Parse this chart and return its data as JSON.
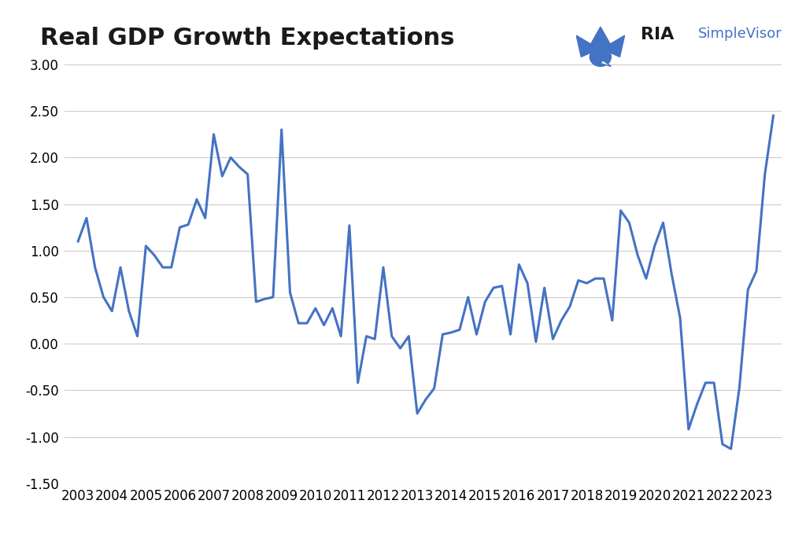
{
  "title": "Real GDP Growth Expectations",
  "title_fontsize": 22,
  "line_color": "#4472C4",
  "line_width": 2.2,
  "background_color": "#ffffff",
  "grid_color": "#cccccc",
  "ylim": [
    -1.5,
    3.0
  ],
  "yticks": [
    -1.5,
    -1.0,
    -0.5,
    0.0,
    0.5,
    1.0,
    1.5,
    2.0,
    2.5,
    3.0
  ],
  "xtick_labels": [
    "2003",
    "2004",
    "2005",
    "2006",
    "2007",
    "2008",
    "2009",
    "2010",
    "2011",
    "2012",
    "2013",
    "2014",
    "2015",
    "2016",
    "2017",
    "2018",
    "2019",
    "2020",
    "2021",
    "2022",
    "2023"
  ],
  "x_values": [
    2003.0,
    2003.25,
    2003.5,
    2003.75,
    2004.0,
    2004.25,
    2004.5,
    2004.75,
    2005.0,
    2005.25,
    2005.5,
    2005.75,
    2006.0,
    2006.25,
    2006.5,
    2006.75,
    2007.0,
    2007.25,
    2007.5,
    2007.75,
    2008.0,
    2008.25,
    2008.5,
    2008.75,
    2009.0,
    2009.25,
    2009.5,
    2009.75,
    2010.0,
    2010.25,
    2010.5,
    2010.75,
    2011.0,
    2011.25,
    2011.5,
    2011.75,
    2012.0,
    2012.25,
    2012.5,
    2012.75,
    2013.0,
    2013.25,
    2013.5,
    2013.75,
    2014.0,
    2014.25,
    2014.5,
    2014.75,
    2015.0,
    2015.25,
    2015.5,
    2015.75,
    2016.0,
    2016.25,
    2016.5,
    2016.75,
    2017.0,
    2017.25,
    2017.5,
    2017.75,
    2018.0,
    2018.25,
    2018.5,
    2018.75,
    2019.0,
    2019.25,
    2019.5,
    2019.75,
    2020.0,
    2020.25,
    2020.5,
    2020.75,
    2021.0,
    2021.25,
    2021.5,
    2021.75,
    2022.0,
    2022.25,
    2022.5,
    2022.75,
    2023.0,
    2023.25,
    2023.5
  ],
  "y_values": [
    1.1,
    1.35,
    0.82,
    0.5,
    0.35,
    0.82,
    0.35,
    0.08,
    1.05,
    0.95,
    0.82,
    0.82,
    1.25,
    1.28,
    1.55,
    1.35,
    2.25,
    1.8,
    2.0,
    1.9,
    1.82,
    0.45,
    0.48,
    0.5,
    2.3,
    0.55,
    0.22,
    0.22,
    0.38,
    0.2,
    0.38,
    0.08,
    1.27,
    -0.42,
    0.08,
    0.05,
    0.82,
    0.08,
    -0.05,
    0.08,
    -0.75,
    -0.6,
    -0.48,
    0.1,
    0.12,
    0.15,
    0.5,
    0.1,
    0.45,
    0.6,
    0.62,
    0.1,
    0.85,
    0.65,
    0.02,
    0.6,
    0.05,
    0.25,
    0.4,
    0.68,
    0.65,
    0.7,
    0.7,
    0.25,
    1.43,
    1.3,
    0.95,
    0.7,
    1.05,
    1.3,
    0.75,
    0.28,
    -0.92,
    -0.65,
    -0.42,
    -0.42,
    -1.08,
    -1.13,
    -0.47,
    0.58,
    0.78,
    1.82,
    2.45
  ],
  "logo_ria_color": "#1a1a1a",
  "logo_simple_color": "#4472C4",
  "logo_icon_color": "#4472C4"
}
